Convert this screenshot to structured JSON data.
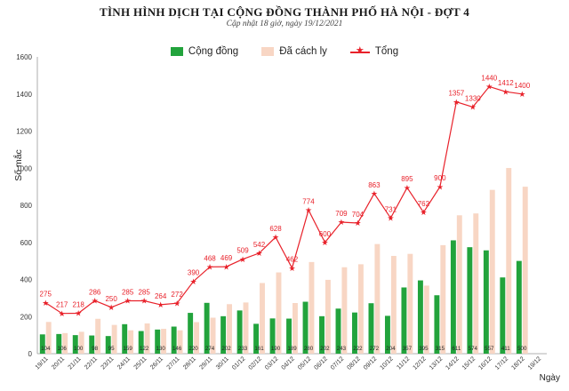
{
  "chart_data": {
    "type": "bar",
    "title": "TÌNH HÌNH DỊCH TẠI CỘNG ĐỒNG THÀNH PHỐ HÀ NỘI - ĐỢT 4",
    "subtitle": "Cập nhật 18 giờ, ngày 19/12/2021",
    "xlabel": "Ngày",
    "ylabel": "Số mắc",
    "ylim": [
      0,
      1600
    ],
    "yticks": [
      "0",
      "200",
      "400",
      "600",
      "800",
      "1000",
      "1200",
      "1400",
      "1600"
    ],
    "legend_position": "top-center",
    "grid": false,
    "categories": [
      "19/11",
      "20/11",
      "21/11",
      "22/11",
      "23/11",
      "24/11",
      "25/11",
      "26/11",
      "27/11",
      "28/11",
      "29/11",
      "30/11",
      "01/12",
      "02/12",
      "03/12",
      "04/12",
      "05/12",
      "06/12",
      "07/12",
      "08/12",
      "09/12",
      "10/12",
      "11/12",
      "12/12",
      "13/12",
      "14/12",
      "15/12",
      "16/12",
      "17/12",
      "18/12",
      "19/12"
    ],
    "series": [
      {
        "name": "Cộng đồng",
        "type": "bar",
        "color": "#22a33c",
        "values": [
          104,
          106,
          100,
          98,
          95,
          159,
          122,
          130,
          146,
          220,
          274,
          202,
          233,
          161,
          190,
          189,
          280,
          202,
          243,
          222,
          272,
          204,
          357,
          395,
          315,
          611,
          574,
          557,
          411,
          500,
          null
        ],
        "labels": [
          "104",
          "106",
          "100",
          "98",
          "95",
          "159",
          "122",
          "130",
          "146",
          "220",
          "274",
          "202",
          "233",
          "161",
          "190",
          "189",
          "280",
          "202",
          "243",
          "222",
          "272",
          "204",
          "357",
          "395",
          "315",
          "611",
          "574",
          "557",
          "411",
          "500",
          ""
        ]
      },
      {
        "name": "Đã cách ly",
        "type": "bar",
        "color": "#f8d6c4",
        "values": [
          171,
          111,
          118,
          188,
          155,
          126,
          163,
          134,
          126,
          170,
          194,
          267,
          276,
          381,
          438,
          273,
          494,
          398,
          466,
          482,
          591,
          527,
          538,
          367,
          585,
          746,
          756,
          883,
          1001,
          900,
          null
        ]
      },
      {
        "name": "Tổng",
        "type": "line",
        "color": "#e8212a",
        "values": [
          275,
          217,
          218,
          286,
          250,
          285,
          285,
          264,
          272,
          390,
          468,
          469,
          509,
          542,
          628,
          462,
          774,
          600,
          709,
          704,
          863,
          731,
          895,
          762,
          900,
          1357,
          1330,
          1440,
          1412,
          1400,
          null
        ],
        "labels": [
          "275",
          "217",
          "218",
          "286",
          "250",
          "285",
          "285",
          "264",
          "272",
          "390",
          "468",
          "469",
          "509",
          "542",
          "628",
          "462",
          "774",
          "600",
          "709",
          "704",
          "863",
          "731",
          "895",
          "762",
          "900",
          "1357",
          "1330",
          "1440",
          "1412",
          "1400",
          ""
        ]
      }
    ]
  }
}
